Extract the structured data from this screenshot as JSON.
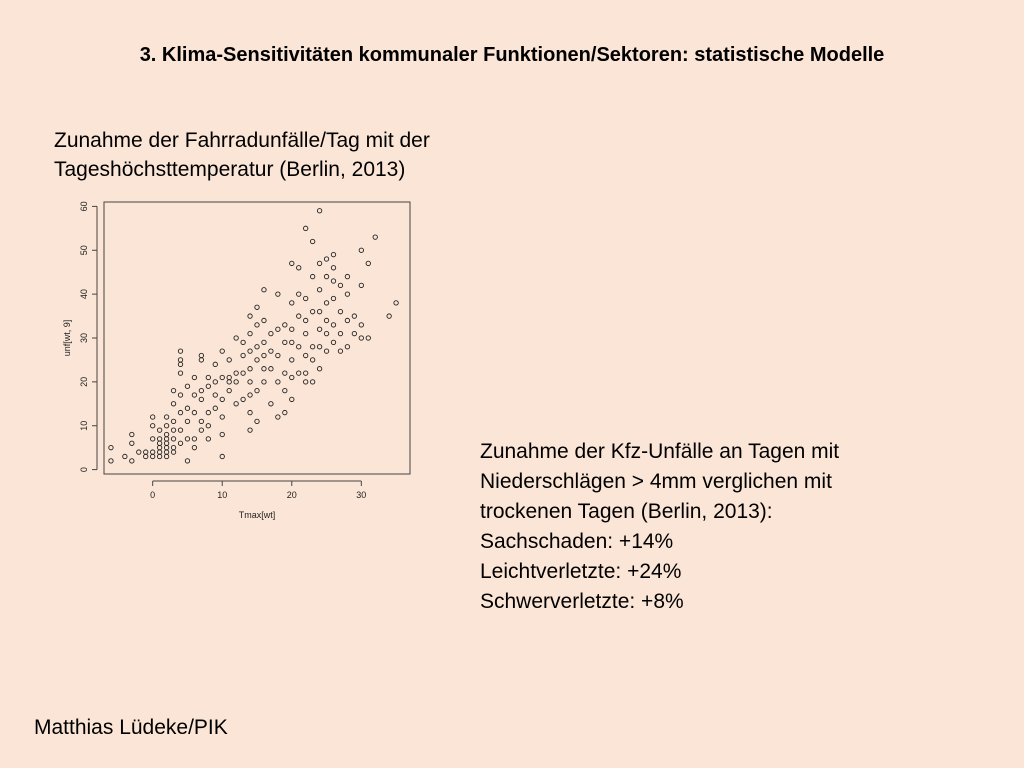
{
  "slide": {
    "title": "3. Klima-Sensitivitäten kommunaler Funktionen/Sektoren: statistische Modelle",
    "subtitle_lines": [
      "Zunahme der Fahrradunfälle/Tag mit der",
      "Tageshöchsttemperatur (Berlin, 2013)"
    ],
    "results_lines": [
      "Zunahme der Kfz-Unfälle an Tagen mit",
      "Niederschlägen > 4mm verglichen mit",
      "trockenen Tagen (Berlin, 2013):",
      "Sachschaden: +14%",
      "Leichtverletzte: +24%",
      "Schwerverletzte: +8%"
    ],
    "author": "Matthias Lüdeke/PIK"
  },
  "chart_data": {
    "type": "scatter",
    "xlabel": "Tmax[wt]",
    "ylabel": "unf[wt, 9]",
    "xlim": [
      -7,
      37
    ],
    "ylim": [
      -1,
      61
    ],
    "x_ticks": [
      0,
      10,
      20,
      30
    ],
    "y_ticks": [
      0,
      10,
      20,
      30,
      40,
      50,
      60
    ],
    "grid": false,
    "points": [
      [
        -6,
        2
      ],
      [
        -6,
        5
      ],
      [
        -4,
        3
      ],
      [
        -3,
        2
      ],
      [
        -3,
        6
      ],
      [
        -3,
        8
      ],
      [
        -2,
        4
      ],
      [
        -1,
        4
      ],
      [
        -1,
        3
      ],
      [
        0,
        7
      ],
      [
        0,
        3
      ],
      [
        0,
        4
      ],
      [
        0,
        10
      ],
      [
        0,
        12
      ],
      [
        1,
        9
      ],
      [
        1,
        7
      ],
      [
        1,
        5
      ],
      [
        1,
        3
      ],
      [
        1,
        6
      ],
      [
        1,
        4
      ],
      [
        2,
        3
      ],
      [
        2,
        8
      ],
      [
        2,
        10
      ],
      [
        2,
        6
      ],
      [
        2,
        12
      ],
      [
        2,
        5
      ],
      [
        2,
        7
      ],
      [
        2,
        4
      ],
      [
        3,
        5
      ],
      [
        3,
        9
      ],
      [
        3,
        15
      ],
      [
        3,
        18
      ],
      [
        3,
        4
      ],
      [
        3,
        11
      ],
      [
        3,
        7
      ],
      [
        4,
        9
      ],
      [
        4,
        13
      ],
      [
        4,
        17
      ],
      [
        4,
        22
      ],
      [
        4,
        24
      ],
      [
        4,
        25
      ],
      [
        4,
        27
      ],
      [
        4,
        6
      ],
      [
        5,
        2
      ],
      [
        5,
        7
      ],
      [
        5,
        11
      ],
      [
        5,
        14
      ],
      [
        5,
        19
      ],
      [
        6,
        7
      ],
      [
        6,
        13
      ],
      [
        6,
        17
      ],
      [
        6,
        21
      ],
      [
        6,
        5
      ],
      [
        7,
        9
      ],
      [
        7,
        11
      ],
      [
        7,
        16
      ],
      [
        7,
        18
      ],
      [
        7,
        25
      ],
      [
        7,
        26
      ],
      [
        8,
        7
      ],
      [
        8,
        10
      ],
      [
        8,
        13
      ],
      [
        8,
        19
      ],
      [
        8,
        21
      ],
      [
        9,
        14
      ],
      [
        9,
        17
      ],
      [
        9,
        20
      ],
      [
        9,
        24
      ],
      [
        10,
        3
      ],
      [
        10,
        8
      ],
      [
        10,
        12
      ],
      [
        10,
        16
      ],
      [
        10,
        21
      ],
      [
        10,
        27
      ],
      [
        11,
        18
      ],
      [
        11,
        20
      ],
      [
        11,
        21
      ],
      [
        11,
        25
      ],
      [
        12,
        15
      ],
      [
        12,
        20
      ],
      [
        12,
        22
      ],
      [
        12,
        30
      ],
      [
        13,
        16
      ],
      [
        13,
        22
      ],
      [
        13,
        26
      ],
      [
        13,
        29
      ],
      [
        14,
        9
      ],
      [
        14,
        13
      ],
      [
        14,
        17
      ],
      [
        14,
        20
      ],
      [
        14,
        23
      ],
      [
        14,
        27
      ],
      [
        14,
        31
      ],
      [
        14,
        35
      ],
      [
        15,
        11
      ],
      [
        15,
        18
      ],
      [
        15,
        25
      ],
      [
        15,
        28
      ],
      [
        15,
        33
      ],
      [
        15,
        37
      ],
      [
        16,
        20
      ],
      [
        16,
        23
      ],
      [
        16,
        26
      ],
      [
        16,
        29
      ],
      [
        16,
        34
      ],
      [
        16,
        41
      ],
      [
        17,
        15
      ],
      [
        17,
        23
      ],
      [
        17,
        27
      ],
      [
        17,
        31
      ],
      [
        18,
        12
      ],
      [
        18,
        20
      ],
      [
        18,
        26
      ],
      [
        18,
        32
      ],
      [
        18,
        40
      ],
      [
        19,
        13
      ],
      [
        19,
        18
      ],
      [
        19,
        22
      ],
      [
        19,
        29
      ],
      [
        19,
        33
      ],
      [
        20,
        16
      ],
      [
        20,
        21
      ],
      [
        20,
        25
      ],
      [
        20,
        29
      ],
      [
        20,
        32
      ],
      [
        20,
        38
      ],
      [
        20,
        47
      ],
      [
        21,
        22
      ],
      [
        21,
        28
      ],
      [
        21,
        35
      ],
      [
        21,
        40
      ],
      [
        21,
        46
      ],
      [
        22,
        20
      ],
      [
        22,
        22
      ],
      [
        22,
        26
      ],
      [
        22,
        31
      ],
      [
        22,
        34
      ],
      [
        22,
        39
      ],
      [
        22,
        55
      ],
      [
        23,
        20
      ],
      [
        23,
        25
      ],
      [
        23,
        28
      ],
      [
        23,
        36
      ],
      [
        23,
        44
      ],
      [
        23,
        52
      ],
      [
        24,
        23
      ],
      [
        24,
        28
      ],
      [
        24,
        32
      ],
      [
        24,
        36
      ],
      [
        24,
        41
      ],
      [
        24,
        47
      ],
      [
        24,
        59
      ],
      [
        25,
        27
      ],
      [
        25,
        31
      ],
      [
        25,
        34
      ],
      [
        25,
        38
      ],
      [
        25,
        44
      ],
      [
        25,
        48
      ],
      [
        26,
        29
      ],
      [
        26,
        33
      ],
      [
        26,
        39
      ],
      [
        26,
        43
      ],
      [
        26,
        46
      ],
      [
        26,
        49
      ],
      [
        27,
        27
      ],
      [
        27,
        31
      ],
      [
        27,
        36
      ],
      [
        27,
        42
      ],
      [
        28,
        28
      ],
      [
        28,
        34
      ],
      [
        28,
        40
      ],
      [
        28,
        44
      ],
      [
        29,
        31
      ],
      [
        29,
        35
      ],
      [
        30,
        30
      ],
      [
        30,
        33
      ],
      [
        30,
        42
      ],
      [
        30,
        50
      ],
      [
        31,
        30
      ],
      [
        31,
        47
      ],
      [
        32,
        53
      ],
      [
        34,
        35
      ],
      [
        35,
        38
      ]
    ]
  }
}
